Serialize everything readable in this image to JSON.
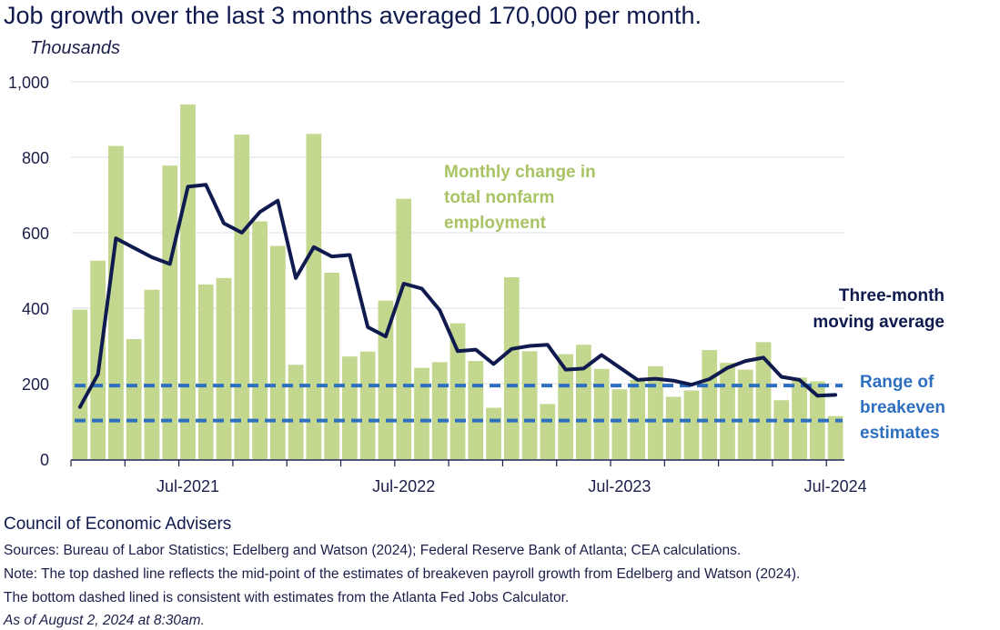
{
  "title": "Job growth over the last 3 months averaged 170,000 per month.",
  "unit_label": "Thousands",
  "footer": {
    "org": "Council of Economic Advisers",
    "sources": "Sources: Bureau of Labor Statistics; Edelberg and Watson (2024); Federal Reserve Bank of Atlanta; CEA calculations.",
    "note1": "Note: The top dashed line reflects the mid-point of the estimates of breakeven payroll growth from Edelberg and Watson (2024).",
    "note2": "The bottom dashed lined is consistent with estimates from the Atlanta Fed Jobs Calculator.",
    "asof": "As of August 2, 2024 at 8:30am."
  },
  "chart_data": {
    "type": "bar",
    "ylim": [
      0,
      1000
    ],
    "yticks": [
      "0",
      "200",
      "400",
      "600",
      "800",
      "1,000"
    ],
    "xticks": [
      "Jul-2021",
      "Jul-2022",
      "Jul-2023",
      "Jul-2024"
    ],
    "grid": true,
    "series": [
      {
        "name": "Monthly change in total nonfarm employment",
        "kind": "bar",
        "color": "#c3d78f",
        "values": [
          396,
          526,
          830,
          318,
          449,
          778,
          940,
          463,
          480,
          860,
          630,
          565,
          250,
          862,
          494,
          272,
          285,
          420,
          690,
          242,
          257,
          360,
          260,
          136,
          482,
          286,
          146,
          278,
          303,
          239,
          185,
          210,
          246,
          165,
          182,
          289,
          255,
          237,
          310,
          156,
          216,
          206,
          114
        ]
      },
      {
        "name": "Three-month moving average",
        "kind": "line",
        "color": "#0f1a4e",
        "values": [
          138,
          225,
          585,
          560,
          535,
          517,
          722,
          727,
          625,
          600,
          655,
          685,
          480,
          562,
          537,
          541,
          350,
          325,
          465,
          452,
          395,
          286,
          290,
          252,
          292,
          300,
          303,
          237,
          240,
          276,
          243,
          210,
          213,
          208,
          197,
          212,
          242,
          260,
          269,
          218,
          210,
          168,
          170
        ]
      },
      {
        "name": "Range of breakeven estimates",
        "kind": "hline",
        "color": "#2e6fc0",
        "values": [
          195,
          102
        ]
      }
    ],
    "annotations": {
      "bars": [
        "Monthly change in",
        "total nonfarm",
        "employment"
      ],
      "line": [
        "Three-month",
        "moving average"
      ],
      "range": [
        "Range of",
        "breakeven",
        "estimates"
      ]
    }
  }
}
